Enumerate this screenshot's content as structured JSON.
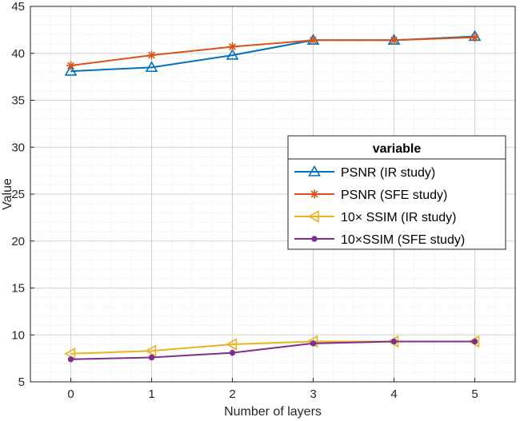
{
  "chart_data": {
    "type": "line",
    "title": "",
    "xlabel": "Number of layers",
    "ylabel": "Value",
    "xlim": [
      -0.5,
      5.5
    ],
    "ylim": [
      5,
      45
    ],
    "xticks": [
      0,
      1,
      2,
      3,
      4,
      5
    ],
    "yticks": [
      5,
      10,
      15,
      20,
      25,
      30,
      35,
      40,
      45
    ],
    "grid": "major and minor",
    "legend": {
      "title": "variable",
      "placement": "right-middle"
    },
    "series": [
      {
        "name": "PSNR (IR study)",
        "color": "#0072BD",
        "marker": "triangle-up",
        "x": [
          0,
          1,
          2,
          3,
          4,
          5
        ],
        "values": [
          38.1,
          38.5,
          39.8,
          41.4,
          41.4,
          41.8
        ]
      },
      {
        "name": "PSNR (SFE study)",
        "color": "#D95319",
        "marker": "asterisk",
        "x": [
          0,
          1,
          2,
          3,
          4,
          5
        ],
        "values": [
          38.7,
          39.8,
          40.7,
          41.4,
          41.4,
          41.7
        ]
      },
      {
        "name": "10× SSIM (IR study)",
        "color": "#EDB120",
        "marker": "triangle-left",
        "x": [
          0,
          1,
          2,
          3,
          4,
          5
        ],
        "values": [
          8.0,
          8.3,
          9.0,
          9.3,
          9.3,
          9.3
        ]
      },
      {
        "name": "10×SSIM (SFE study)",
        "color": "#7E2F8E",
        "marker": "dot",
        "x": [
          0,
          1,
          2,
          3,
          4,
          5
        ],
        "values": [
          7.4,
          7.6,
          8.1,
          9.1,
          9.3,
          9.3
        ]
      }
    ]
  }
}
